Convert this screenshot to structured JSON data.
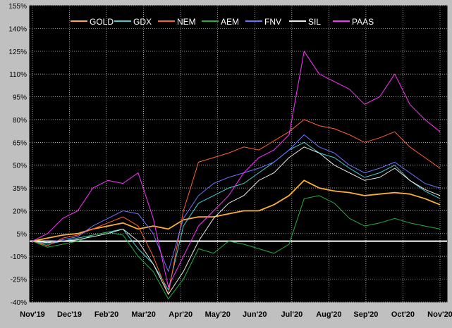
{
  "chart_data": {
    "type": "line",
    "title": "",
    "xlabel": "",
    "ylabel": "",
    "x_labels": [
      "Nov'19",
      "Dec'19",
      "Feb'20",
      "Mar'20",
      "Apr'20",
      "May'20",
      "Jun'20",
      "Jul'20",
      "Aug'20",
      "Sep'20",
      "Oct'20",
      "Nov'20"
    ],
    "y_ticks": [
      "155%",
      "140%",
      "125%",
      "110%",
      "95%",
      "80%",
      "65%",
      "50%",
      "35%",
      "20%",
      "5%",
      "-10%",
      "-25%",
      "-40%"
    ],
    "ylim": [
      -40,
      155
    ],
    "baseline": 0,
    "grid": true,
    "legend_position": "top",
    "x": [
      "Nov'19",
      "Nov'19b",
      "Dec'19",
      "Dec'19b",
      "Feb'20",
      "Feb'20b",
      "Mar'20",
      "Mar'20b",
      "Mar'20c",
      "Apr'20",
      "Apr'20b",
      "Apr'20c",
      "May'20",
      "May'20b",
      "Jun'20",
      "Jun'20b",
      "Jul'20",
      "Jul'20b",
      "Jul'20c",
      "Aug'20",
      "Aug'20b",
      "Sep'20",
      "Sep'20b",
      "Oct'20",
      "Oct'20b",
      "Nov'20",
      "Nov'20b",
      "Nov'20c"
    ],
    "series": [
      {
        "name": "GOLD",
        "color": "#ffb030",
        "values": [
          0,
          2,
          4,
          5,
          8,
          10,
          12,
          8,
          10,
          8,
          14,
          16,
          16,
          18,
          20,
          20,
          24,
          30,
          40,
          35,
          33,
          32,
          30,
          31,
          32,
          31,
          28,
          24
        ]
      },
      {
        "name": "GDX",
        "color": "#40d0d0",
        "values": [
          0,
          -2,
          0,
          2,
          4,
          6,
          8,
          -5,
          -15,
          -32,
          10,
          25,
          30,
          35,
          38,
          45,
          52,
          60,
          65,
          58,
          55,
          48,
          42,
          45,
          50,
          40,
          33,
          28
        ]
      },
      {
        "name": "NEM",
        "color": "#ff6030",
        "values": [
          0,
          -3,
          2,
          4,
          8,
          12,
          16,
          10,
          -10,
          -35,
          20,
          52,
          55,
          58,
          62,
          60,
          66,
          72,
          80,
          76,
          74,
          70,
          65,
          68,
          72,
          62,
          55,
          48
        ]
      },
      {
        "name": "AEM",
        "color": "#20b040",
        "values": [
          0,
          -4,
          -2,
          0,
          4,
          6,
          4,
          -10,
          -20,
          -38,
          -25,
          -5,
          -8,
          0,
          -2,
          -5,
          -8,
          -2,
          28,
          30,
          25,
          15,
          10,
          12,
          15,
          12,
          10,
          8
        ]
      },
      {
        "name": "FNV",
        "color": "#7070ff",
        "values": [
          0,
          -1,
          1,
          3,
          10,
          15,
          20,
          18,
          5,
          -20,
          15,
          30,
          38,
          42,
          45,
          48,
          52,
          60,
          70,
          62,
          58,
          50,
          45,
          48,
          52,
          45,
          38,
          35
        ]
      },
      {
        "name": "SIL",
        "color": "#e8e8e8",
        "values": [
          0,
          -1,
          0,
          1,
          3,
          5,
          8,
          0,
          -15,
          -35,
          -20,
          0,
          15,
          25,
          30,
          40,
          45,
          55,
          62,
          58,
          50,
          45,
          40,
          42,
          48,
          40,
          34,
          30
        ]
      },
      {
        "name": "PAAS",
        "color": "#ff30ff",
        "values": [
          0,
          5,
          15,
          20,
          35,
          40,
          38,
          45,
          15,
          -30,
          -10,
          10,
          20,
          30,
          45,
          55,
          60,
          70,
          125,
          110,
          105,
          100,
          90,
          95,
          110,
          90,
          80,
          72
        ]
      }
    ]
  }
}
